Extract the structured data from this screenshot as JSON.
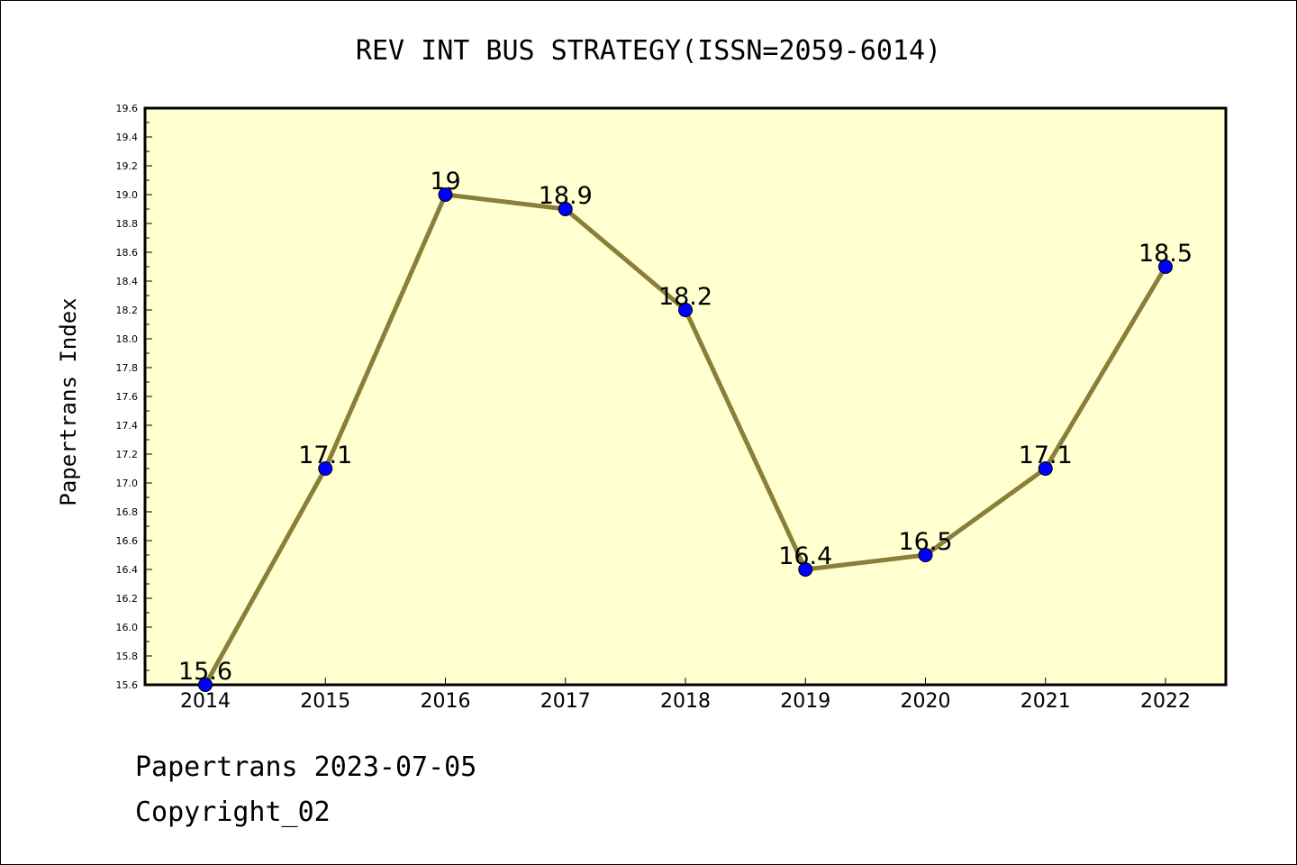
{
  "chart_data": {
    "type": "line",
    "title": "REV INT BUS STRATEGY(ISSN=2059-6014)",
    "xlabel": "",
    "ylabel": "Papertrans Index",
    "categories": [
      "2014",
      "2015",
      "2016",
      "2017",
      "2018",
      "2019",
      "2020",
      "2021",
      "2022"
    ],
    "series": [
      {
        "values": [
          15.6,
          17.1,
          19.0,
          18.9,
          18.2,
          16.4,
          16.5,
          17.1,
          18.5
        ]
      }
    ],
    "data_labels": [
      "15.6",
      "17.1",
      "19",
      "18.9",
      "18.2",
      "16.4",
      "16.5",
      "17.1",
      "18.5"
    ],
    "ylim": [
      15.6,
      19.6
    ],
    "ytick_step": 0.2,
    "grid": false,
    "colors": {
      "plot_background": "#ffffd0",
      "line": "#8b7d3a",
      "marker": "#0000ff"
    }
  },
  "footer": {
    "line1": "Papertrans 2023-07-05",
    "line2": "Copyright_02"
  }
}
